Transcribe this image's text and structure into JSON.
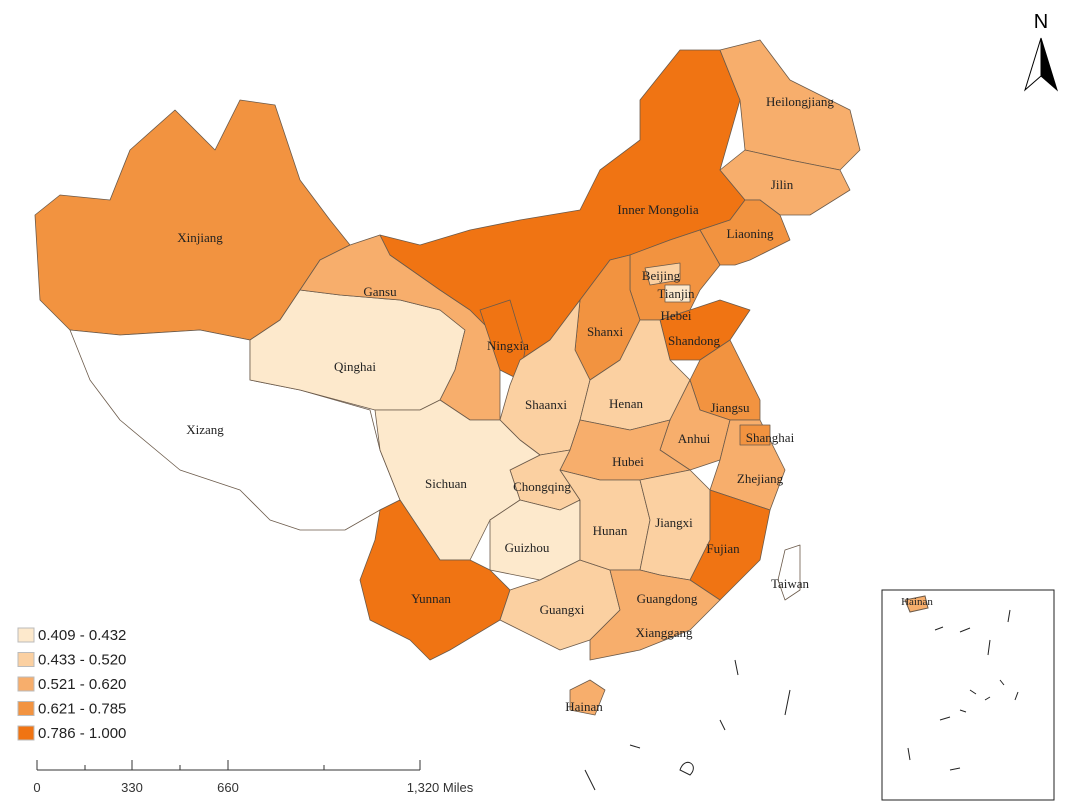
{
  "legend": {
    "classes": [
      {
        "label": "0.409 - 0.432",
        "color": "#fde9cc"
      },
      {
        "label": "0.433 - 0.520",
        "color": "#fbd0a1"
      },
      {
        "label": "0.521 - 0.620",
        "color": "#f7ae6c"
      },
      {
        "label": "0.621 - 0.785",
        "color": "#f29340"
      },
      {
        "label": "0.786 - 1.000",
        "color": "#f07413"
      }
    ]
  },
  "provinces": [
    {
      "name": "Xinjiang",
      "class": 3
    },
    {
      "name": "Xizang",
      "class": null
    },
    {
      "name": "Qinghai",
      "class": 0
    },
    {
      "name": "Gansu",
      "class": 2
    },
    {
      "name": "Inner Mongolia",
      "class": 4
    },
    {
      "name": "Ningxia",
      "class": 4
    },
    {
      "name": "Heilongjiang",
      "class": 2
    },
    {
      "name": "Jilin",
      "class": 2
    },
    {
      "name": "Liaoning",
      "class": 3
    },
    {
      "name": "Hebei",
      "class": 3
    },
    {
      "name": "Beijing",
      "class": 1
    },
    {
      "name": "Tianjin",
      "class": 0
    },
    {
      "name": "Shanxi",
      "class": 3
    },
    {
      "name": "Shaanxi",
      "class": 1
    },
    {
      "name": "Shandong",
      "class": 4
    },
    {
      "name": "Henan",
      "class": 1
    },
    {
      "name": "Jiangsu",
      "class": 3
    },
    {
      "name": "Anhui",
      "class": 2
    },
    {
      "name": "Shanghai",
      "class": 3
    },
    {
      "name": "Zhejiang",
      "class": 2
    },
    {
      "name": "Hubei",
      "class": 2
    },
    {
      "name": "Chongqing",
      "class": 1
    },
    {
      "name": "Sichuan",
      "class": 0
    },
    {
      "name": "Guizhou",
      "class": 0
    },
    {
      "name": "Yunnan",
      "class": 4
    },
    {
      "name": "Guangxi",
      "class": 1
    },
    {
      "name": "Hunan",
      "class": 1
    },
    {
      "name": "Jiangxi",
      "class": 1
    },
    {
      "name": "Fujian",
      "class": 4
    },
    {
      "name": "Guangdong",
      "class": 2
    },
    {
      "name": "Hainan",
      "class": 2
    },
    {
      "name": "Taiwan",
      "class": null
    }
  ],
  "other_labels": {
    "xianggang": "Xianggang",
    "inset": "Hainan"
  },
  "north": "N",
  "scale_bar": {
    "labels": [
      "0",
      "330",
      "660",
      "1,320 Miles"
    ]
  }
}
